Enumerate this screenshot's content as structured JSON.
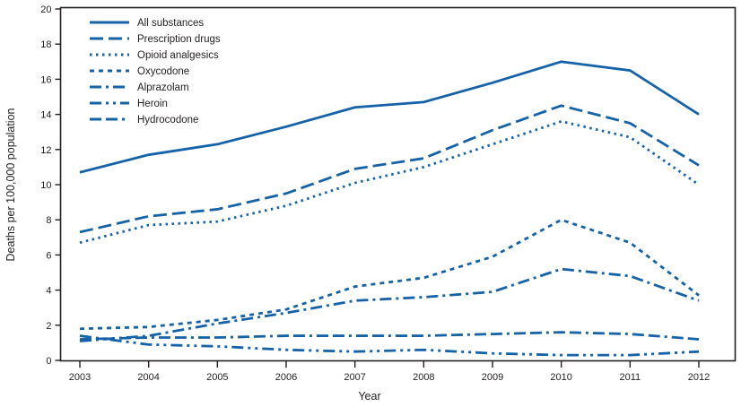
{
  "chart_data": {
    "type": "line",
    "title": "",
    "xlabel": "Year",
    "ylabel": "Deaths per 100,000 population",
    "x": [
      2003,
      2004,
      2005,
      2006,
      2007,
      2008,
      2009,
      2010,
      2011,
      2012
    ],
    "ylim": [
      0,
      20
    ],
    "ytick_step": 2,
    "grid": false,
    "legend_position": "top-left",
    "line_color": "#1562a9",
    "axis_color": "#231f20",
    "series": [
      {
        "name": "All substances",
        "dash": "solid",
        "values": [
          10.7,
          11.7,
          12.3,
          13.3,
          14.4,
          14.7,
          15.8,
          17.0,
          16.5,
          14.0
        ]
      },
      {
        "name": "Prescription drugs",
        "dash": "long-dash",
        "values": [
          7.3,
          8.2,
          8.6,
          9.5,
          10.9,
          11.5,
          13.1,
          14.5,
          13.5,
          11.1
        ]
      },
      {
        "name": "Opioid analgesics",
        "dash": "dotted",
        "values": [
          6.7,
          7.7,
          7.9,
          8.8,
          10.1,
          11.0,
          12.3,
          13.6,
          12.7,
          10.0
        ]
      },
      {
        "name": "Oxycodone",
        "dash": "dash",
        "values": [
          1.8,
          1.9,
          2.3,
          2.9,
          4.2,
          4.7,
          5.9,
          8.0,
          6.7,
          3.7
        ]
      },
      {
        "name": "Alprazolam",
        "dash": "dash-dot",
        "values": [
          1.1,
          1.4,
          2.1,
          2.7,
          3.4,
          3.6,
          3.9,
          5.2,
          4.8,
          3.4
        ]
      },
      {
        "name": "Heroin",
        "dash": "dash-dot-dot",
        "values": [
          1.4,
          0.9,
          0.8,
          0.6,
          0.5,
          0.6,
          0.4,
          0.3,
          0.3,
          0.5
        ]
      },
      {
        "name": "Hydrocodone",
        "dash": "dash-dash-dot",
        "values": [
          1.2,
          1.3,
          1.3,
          1.4,
          1.4,
          1.4,
          1.5,
          1.6,
          1.5,
          1.2
        ]
      }
    ]
  }
}
